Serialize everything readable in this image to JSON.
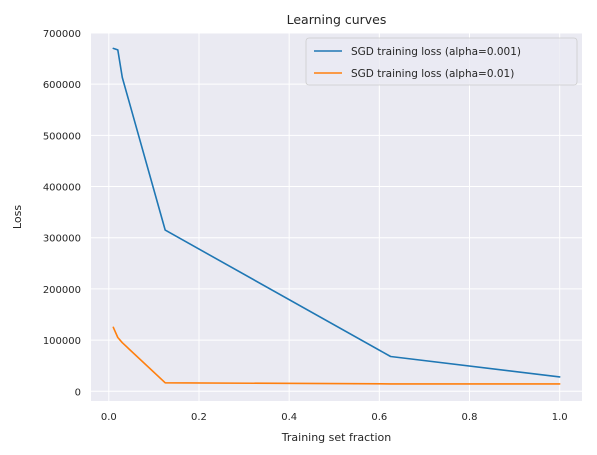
{
  "chart_data": {
    "type": "line",
    "title": "Learning curves",
    "xlabel": "Training set fraction",
    "ylabel": "Loss",
    "xlim": [
      -0.0395,
      1.0495
    ],
    "ylim": [
      -19000,
      700000
    ],
    "xticks": [
      0.0,
      0.2,
      0.4,
      0.6,
      0.8,
      1.0
    ],
    "xtick_labels": [
      "0.0",
      "0.2",
      "0.4",
      "0.6",
      "0.8",
      "1.0"
    ],
    "yticks": [
      0,
      100000,
      200000,
      300000,
      400000,
      500000,
      600000,
      700000
    ],
    "ytick_labels": [
      "0",
      "100000",
      "200000",
      "300000",
      "400000",
      "500000",
      "600000",
      "700000"
    ],
    "grid": true,
    "background": "#eaeaf2",
    "legend_position": "top-right",
    "series": [
      {
        "name": "SGD training loss (alpha=0.001)",
        "color": "#1f77b4",
        "x": [
          0.01,
          0.02,
          0.03,
          0.125,
          0.625,
          1.0
        ],
        "y": [
          670000,
          667000,
          613000,
          315000,
          68000,
          28000
        ]
      },
      {
        "name": "SGD training loss (alpha=0.01)",
        "color": "#ff7f0e",
        "x": [
          0.01,
          0.02,
          0.03,
          0.125,
          0.625,
          1.0
        ],
        "y": [
          125000,
          105000,
          95000,
          16500,
          14500,
          14500
        ]
      }
    ]
  }
}
